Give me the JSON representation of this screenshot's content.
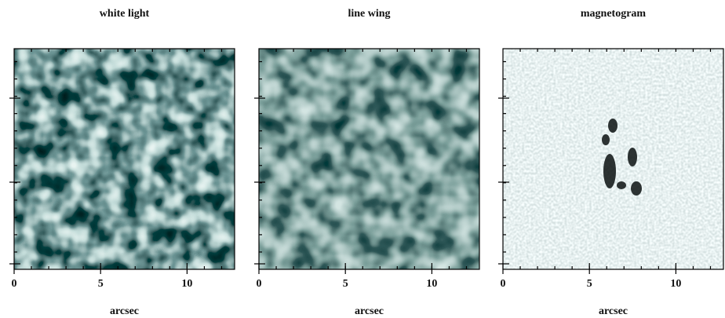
{
  "chart_data": [
    {
      "type": "image",
      "title": "white light",
      "x_label": "arcsec",
      "xlim": [
        0,
        12.75
      ],
      "xticks": [
        0,
        5,
        10
      ]
    },
    {
      "type": "image",
      "title": "line wing",
      "x_label": "arcsec",
      "xlim": [
        0,
        12.75
      ],
      "xticks": [
        0,
        5,
        10
      ]
    },
    {
      "type": "image",
      "title": "magnetogram",
      "x_label": "arcsec",
      "xlim": [
        0,
        12.75
      ],
      "xticks": [
        0,
        5,
        10
      ]
    }
  ]
}
